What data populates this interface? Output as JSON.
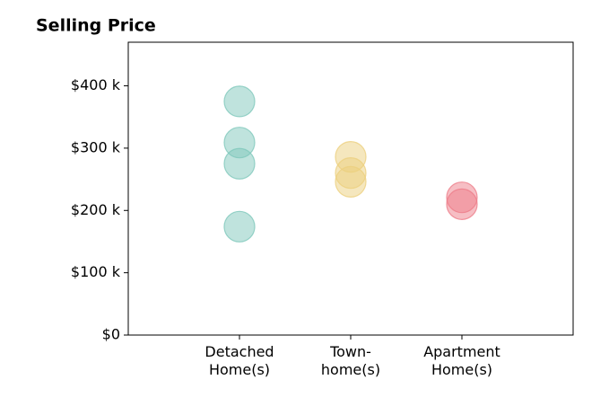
{
  "chart_data": {
    "type": "strip",
    "title": "Selling Price",
    "groups": [
      {
        "category": "Detached\nHome(s)",
        "color": "#7fc8bc",
        "values": [
          375000,
          309000,
          275000,
          174000
        ]
      },
      {
        "category": "Town-\nhome(s)",
        "color": "#eccf7e",
        "values": [
          286000,
          260000,
          246000
        ]
      },
      {
        "category": "Apartment\nHome(s)",
        "color": "#ee7d89",
        "values": [
          221000,
          210000
        ]
      }
    ],
    "ylim": [
      0,
      470000
    ],
    "yticks": [
      {
        "value": 0,
        "label": "$0"
      },
      {
        "value": 100000,
        "label": "$100 k"
      },
      {
        "value": 200000,
        "label": "$200 k"
      },
      {
        "value": 300000,
        "label": "$300 k"
      },
      {
        "value": 400000,
        "label": "$400 k"
      }
    ]
  }
}
